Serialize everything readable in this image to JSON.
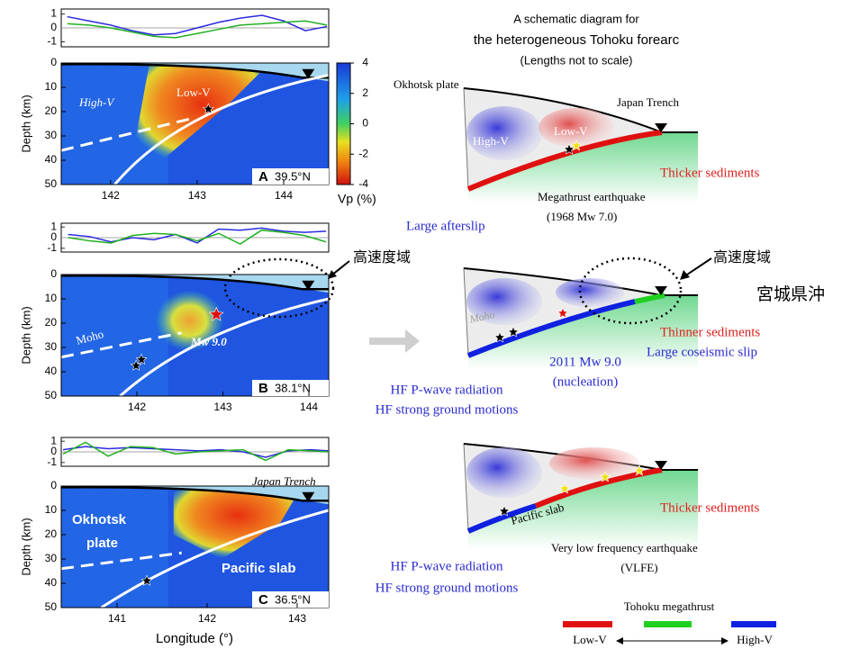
{
  "panels": [
    {
      "label": "A",
      "latitude": "39.5°N",
      "xlim": [
        141.43,
        144.52
      ],
      "xticks": [
        142,
        143,
        144
      ],
      "ylim": [
        0,
        50
      ],
      "yticks": [
        0,
        10,
        20,
        30,
        40,
        50
      ],
      "y_label": "Depth (km)",
      "wave_ylim": [
        -1.35,
        1.35
      ],
      "wave_yticks": [
        -1,
        0,
        1
      ],
      "wave_x": [
        141.5,
        141.75,
        142,
        142.25,
        142.5,
        142.75,
        143,
        143.25,
        143.5,
        143.75,
        144,
        144.25,
        144.5
      ],
      "wave_series": [
        {
          "color": "#2a2ae0",
          "values": [
            0.8,
            0.5,
            0.2,
            -0.2,
            -0.5,
            -0.4,
            0,
            0.4,
            0.7,
            0.9,
            0.5,
            -0.2,
            0.1
          ]
        },
        {
          "color": "#22b022",
          "values": [
            0.3,
            0.2,
            0,
            -0.3,
            -0.6,
            -0.7,
            -0.4,
            -0.1,
            0.2,
            0.3,
            0.4,
            0.5,
            0.2
          ]
        }
      ],
      "texts": {
        "high": "High-V",
        "low": "Low-V"
      }
    },
    {
      "label": "B",
      "latitude": "38.1°N",
      "xlim": [
        141.12,
        144.23
      ],
      "xticks": [
        142,
        143,
        144
      ],
      "ylim": [
        0,
        50
      ],
      "yticks": [
        0,
        10,
        20,
        30,
        40,
        50
      ],
      "y_label": "Depth (km)",
      "wave_ylim": [
        -1.35,
        1.35
      ],
      "wave_yticks": [
        -1,
        0,
        1
      ],
      "wave_x": [
        141.2,
        141.45,
        141.7,
        141.95,
        142.2,
        142.45,
        142.7,
        142.95,
        143.2,
        143.45,
        143.7,
        143.95,
        144.2
      ],
      "wave_series": [
        {
          "color": "#2a2ae0",
          "values": [
            0.3,
            0.1,
            -0.4,
            0,
            -0.2,
            0.3,
            -0.5,
            0.8,
            0.7,
            0.9,
            0.6,
            0.5,
            0.6
          ]
        },
        {
          "color": "#22b022",
          "values": [
            0,
            -0.3,
            -0.5,
            0.2,
            0.4,
            0.3,
            -0.3,
            0.4,
            -0.6,
            0.7,
            0.5,
            0.2,
            -0.4
          ]
        }
      ],
      "texts": {
        "moho": "Moho",
        "mw": "Mw 9.0",
        "high_velocity": "高速度域"
      }
    },
    {
      "label": "C",
      "latitude": "36.5°N",
      "xlim": [
        140.38,
        143.35
      ],
      "xticks": [
        141,
        142,
        143
      ],
      "ylim": [
        0,
        50
      ],
      "yticks": [
        0,
        10,
        20,
        30,
        40,
        50
      ],
      "y_label": "Depth (km)",
      "wave_ylim": [
        -1.35,
        1.35
      ],
      "wave_yticks": [
        -1,
        0,
        1
      ],
      "wave_x": [
        140.4,
        140.65,
        140.9,
        141.15,
        141.4,
        141.65,
        141.9,
        142.15,
        142.4,
        142.65,
        142.9,
        143.15,
        143.35
      ],
      "wave_series": [
        {
          "color": "#2a2ae0",
          "values": [
            0.2,
            0.5,
            0.3,
            0.4,
            0.3,
            0.2,
            0.1,
            0.2,
            0,
            -0.5,
            0.1,
            0.2,
            0.1
          ]
        },
        {
          "color": "#22b022",
          "values": [
            -0.2,
            0.9,
            -0.4,
            0.5,
            0.4,
            -0.2,
            0,
            0.1,
            0.2,
            -0.8,
            0.2,
            0.1,
            0
          ]
        }
      ],
      "texts": {
        "trench": "Japan Trench",
        "okhotsk": "Okhotsk",
        "plate": "plate",
        "slab": "Pacific slab"
      }
    }
  ],
  "colorbar": {
    "ylim": [
      -4,
      4
    ],
    "yticks": [
      -4,
      -2,
      0,
      2,
      4
    ],
    "label": "Vp (%)"
  },
  "x_label": "Longitude (°)",
  "region_label": "宮城県沖",
  "schematic": {
    "title": [
      "A schematic diagram for",
      "the heterogeneous Tohoku forearc",
      "(Lengths not to scale)"
    ],
    "panel1": {
      "okhotsk": "Okhotsk plate",
      "trench": "Japan Trench",
      "high": "High-V",
      "low": "Low-V",
      "sediments": "Thicker sediments",
      "quake": "Megathrust earthquake",
      "quake_detail": "(1968 Mw 7.0)",
      "afterslip": "Large afterslip"
    },
    "panel2": {
      "high_velocity": "高速度域",
      "moho": "Moho",
      "sediments": "Thinner sediments",
      "slip": "Large coseismic slip",
      "quake": "2011 Mw 9.0",
      "quake_detail": "(nucleation)",
      "hf1": "HF P-wave radiation",
      "hf2": "HF strong ground motions"
    },
    "panel3": {
      "slab": "Pacific slab",
      "sediments": "Thicker sediments",
      "vlfe": "Very low frequency earthquake",
      "vlfe_abbr": "(VLFE)",
      "hf1": "HF P-wave radiation",
      "hf2": "HF strong ground motions"
    },
    "legend": {
      "title": "Tohoku megathrust",
      "low": "Low-V",
      "high": "High-V"
    }
  }
}
